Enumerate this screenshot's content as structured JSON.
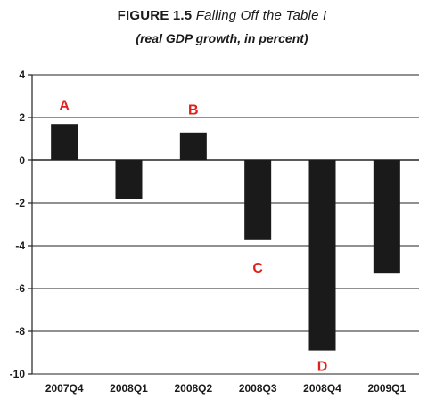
{
  "title": {
    "label": "FIGURE 1.5",
    "text": "Falling Off the Table I"
  },
  "subtitle": "(real GDP growth, in percent)",
  "colors": {
    "bar": "#1a1a1a",
    "annotation": "#e0201b",
    "grid": "#222222"
  },
  "chart_data": {
    "type": "bar",
    "title": "FIGURE 1.5 Falling Off the Table I",
    "subtitle": "(real GDP growth, in percent)",
    "categories": [
      "2007Q4",
      "2008Q1",
      "2008Q2",
      "2008Q3",
      "2008Q4",
      "2009Q1"
    ],
    "values": [
      1.7,
      -1.8,
      1.3,
      -3.7,
      -8.9,
      -5.3
    ],
    "xlabel": "",
    "ylabel": "",
    "ylim": [
      -10,
      4
    ],
    "yticks": [
      4,
      2,
      0,
      -2,
      -4,
      -6,
      -8,
      -10
    ],
    "grid": true,
    "annotations": [
      {
        "text": "A",
        "category": "2007Q4",
        "y": 2.6
      },
      {
        "text": "B",
        "category": "2008Q2",
        "y": 2.4
      },
      {
        "text": "C",
        "category": "2008Q3",
        "y": -5.0
      },
      {
        "text": "D",
        "category": "2008Q4",
        "y": -9.6
      }
    ]
  }
}
